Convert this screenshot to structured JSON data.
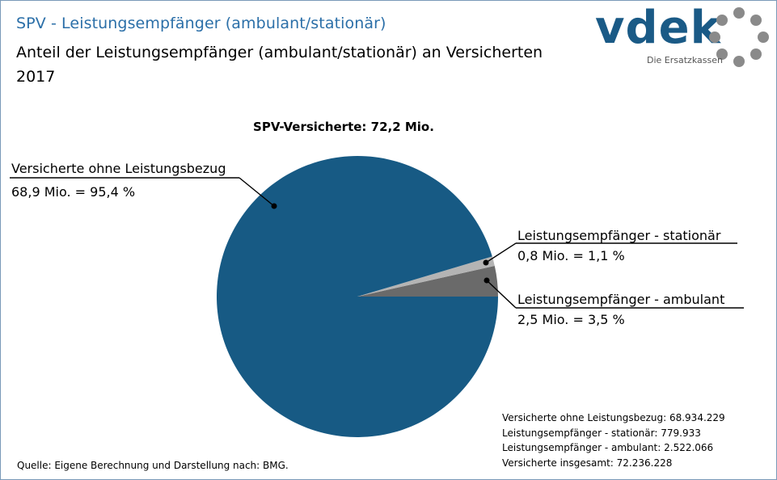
{
  "header": {
    "title": "SPV - Leistungsempfänger (ambulant/stationär)",
    "subtitle_line1": "Anteil der Leistungsempfänger (ambulant/stationär)  an Versicherten",
    "subtitle_line2": "2017"
  },
  "logo": {
    "text": "vdek",
    "tagline": "Die Ersatzkassen"
  },
  "chart_data": {
    "type": "pie",
    "title": "SPV-Versicherte:  72,2 Mio.",
    "slices": [
      {
        "name": "Versicherte ohne Leistungsbezug",
        "value_mio": 68.9,
        "percent": 95.4,
        "color": "#175a84",
        "label_line1": "Versicherte ohne Leistungsbezug",
        "label_line2": "68,9 Mio. = 95,4  %"
      },
      {
        "name": "Leistungsempfänger - stationär",
        "value_mio": 0.8,
        "percent": 1.1,
        "color": "#b4b4b4",
        "label_line1": "Leistungsempfänger  - stationär",
        "label_line2": "0,8 Mio. = 1,1  %"
      },
      {
        "name": "Leistungsempfänger - ambulant",
        "value_mio": 2.5,
        "percent": 3.5,
        "color": "#6a6a6a",
        "label_line1": "Leistungsempfänger  - ambulant",
        "label_line2": "2,5 Mio. = 3,5  %"
      }
    ]
  },
  "summary": {
    "line1": "Versicherte ohne Leistungsbezug:  68.934.229",
    "line2": "Leistungsempfänger  - stationär: 779.933",
    "line3": "Leistungsempfänger  - ambulant: 2.522.066",
    "line4": "Versicherte insgesamt:  72.236.228"
  },
  "source": "Quelle: Eigene Berechnung und Darstellung nach: BMG."
}
